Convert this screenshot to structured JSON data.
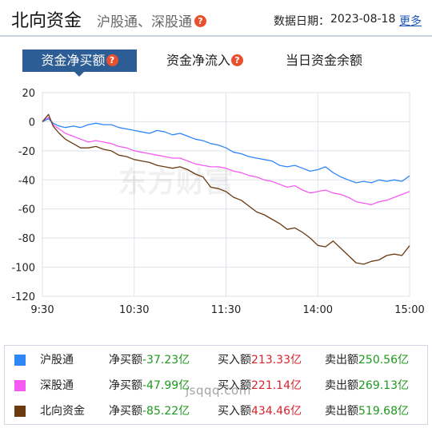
{
  "header": {
    "title": "北向资金",
    "subtitle": "沪股通、深股通",
    "help_icon": "question-icon",
    "date_label": "数据日期：",
    "date_value": "2023-08-18",
    "more_link": "更多"
  },
  "tabs": [
    {
      "label": "资金净买额",
      "active": true,
      "has_help": true
    },
    {
      "label": "资金净流入",
      "active": false,
      "has_help": true
    },
    {
      "label": "当日资金余额",
      "active": false,
      "has_help": false
    }
  ],
  "watermark_logo": "东方财富",
  "watermark_text": "jsqqq.com",
  "colors": {
    "sh": "#2f86f6",
    "sz": "#f55bf2",
    "north": "#6b3a10",
    "accent": "#2d5d95",
    "positive": "#d9232d",
    "negative": "#1d9a1d"
  },
  "chart_data": {
    "type": "line",
    "x_ticks": [
      "9:30",
      "10:30",
      "11:30",
      "14:00",
      "15:00"
    ],
    "y_ticks": [
      20,
      0,
      -20,
      -40,
      -60,
      -80,
      -100,
      -120
    ],
    "ylim": [
      -120,
      20
    ],
    "grid": true,
    "x": [
      "9:30",
      "9:34",
      "9:37",
      "9:41",
      "9:45",
      "9:50",
      "9:55",
      "10:00",
      "10:05",
      "10:10",
      "10:15",
      "10:20",
      "10:25",
      "10:30",
      "10:35",
      "10:40",
      "10:45",
      "10:50",
      "10:55",
      "11:00",
      "11:05",
      "11:10",
      "11:15",
      "11:20",
      "11:25",
      "11:30",
      "13:05",
      "13:10",
      "13:15",
      "13:20",
      "13:25",
      "13:30",
      "13:35",
      "13:40",
      "13:45",
      "13:50",
      "13:55",
      "14:00",
      "14:05",
      "14:10",
      "14:15",
      "14:20",
      "14:25",
      "14:30",
      "14:35",
      "14:40",
      "14:45",
      "14:50",
      "14:55",
      "15:00"
    ],
    "series": [
      {
        "name": "沪股通",
        "color": "#2f86f6",
        "values": [
          0,
          2,
          -1,
          -3,
          -4,
          -3,
          -4,
          -2,
          -1,
          -2,
          -2,
          -4,
          -5,
          -6,
          -7,
          -8,
          -6,
          -7,
          -9,
          -8,
          -10,
          -12,
          -13,
          -15,
          -16,
          -18,
          -21,
          -22,
          -24,
          -25,
          -26,
          -27,
          -30,
          -31,
          -30,
          -32,
          -34,
          -33,
          -31,
          -35,
          -38,
          -40,
          -42,
          -41,
          -42,
          -40,
          -41,
          -40,
          -41,
          -37.23
        ]
      },
      {
        "name": "深股通",
        "color": "#f55bf2",
        "values": [
          0,
          3,
          -2,
          -5,
          -8,
          -10,
          -12,
          -14,
          -13,
          -14,
          -15,
          -17,
          -18,
          -20,
          -21,
          -22,
          -23,
          -24,
          -25,
          -25,
          -27,
          -29,
          -30,
          -31,
          -31,
          -32,
          -34,
          -35,
          -37,
          -38,
          -40,
          -41,
          -43,
          -45,
          -44,
          -47,
          -49,
          -48,
          -47,
          -49,
          -50,
          -52,
          -55,
          -56,
          -57,
          -55,
          -54,
          -52,
          -50,
          -47.99
        ]
      },
      {
        "name": "北向资金",
        "color": "#6b3a10",
        "values": [
          0,
          5,
          -3,
          -8,
          -12,
          -15,
          -18,
          -18,
          -17,
          -19,
          -20,
          -23,
          -24,
          -26,
          -27,
          -28,
          -30,
          -31,
          -32,
          -31,
          -33,
          -36,
          -38,
          -45,
          -46,
          -48,
          -52,
          -54,
          -58,
          -62,
          -64,
          -67,
          -70,
          -74,
          -73,
          -76,
          -80,
          -85,
          -86,
          -82,
          -87,
          -92,
          -97,
          -98,
          -96,
          -95,
          -92,
          -91,
          -92,
          -85.22
        ]
      }
    ]
  },
  "legend": [
    {
      "name": "沪股通",
      "net_label": "净买额",
      "net_value": "-37.23亿",
      "buy_label": "买入额",
      "buy_value": "213.33亿",
      "sell_label": "卖出额",
      "sell_value": "250.56亿"
    },
    {
      "name": "深股通",
      "net_label": "净买额",
      "net_value": "-47.99亿",
      "buy_label": "买入额",
      "buy_value": "221.14亿",
      "sell_label": "卖出额",
      "sell_value": "269.13亿"
    },
    {
      "name": "北向资金",
      "net_label": "净买额",
      "net_value": "-85.22亿",
      "buy_label": "买入额",
      "buy_value": "434.46亿",
      "sell_label": "卖出额",
      "sell_value": "519.68亿"
    }
  ]
}
